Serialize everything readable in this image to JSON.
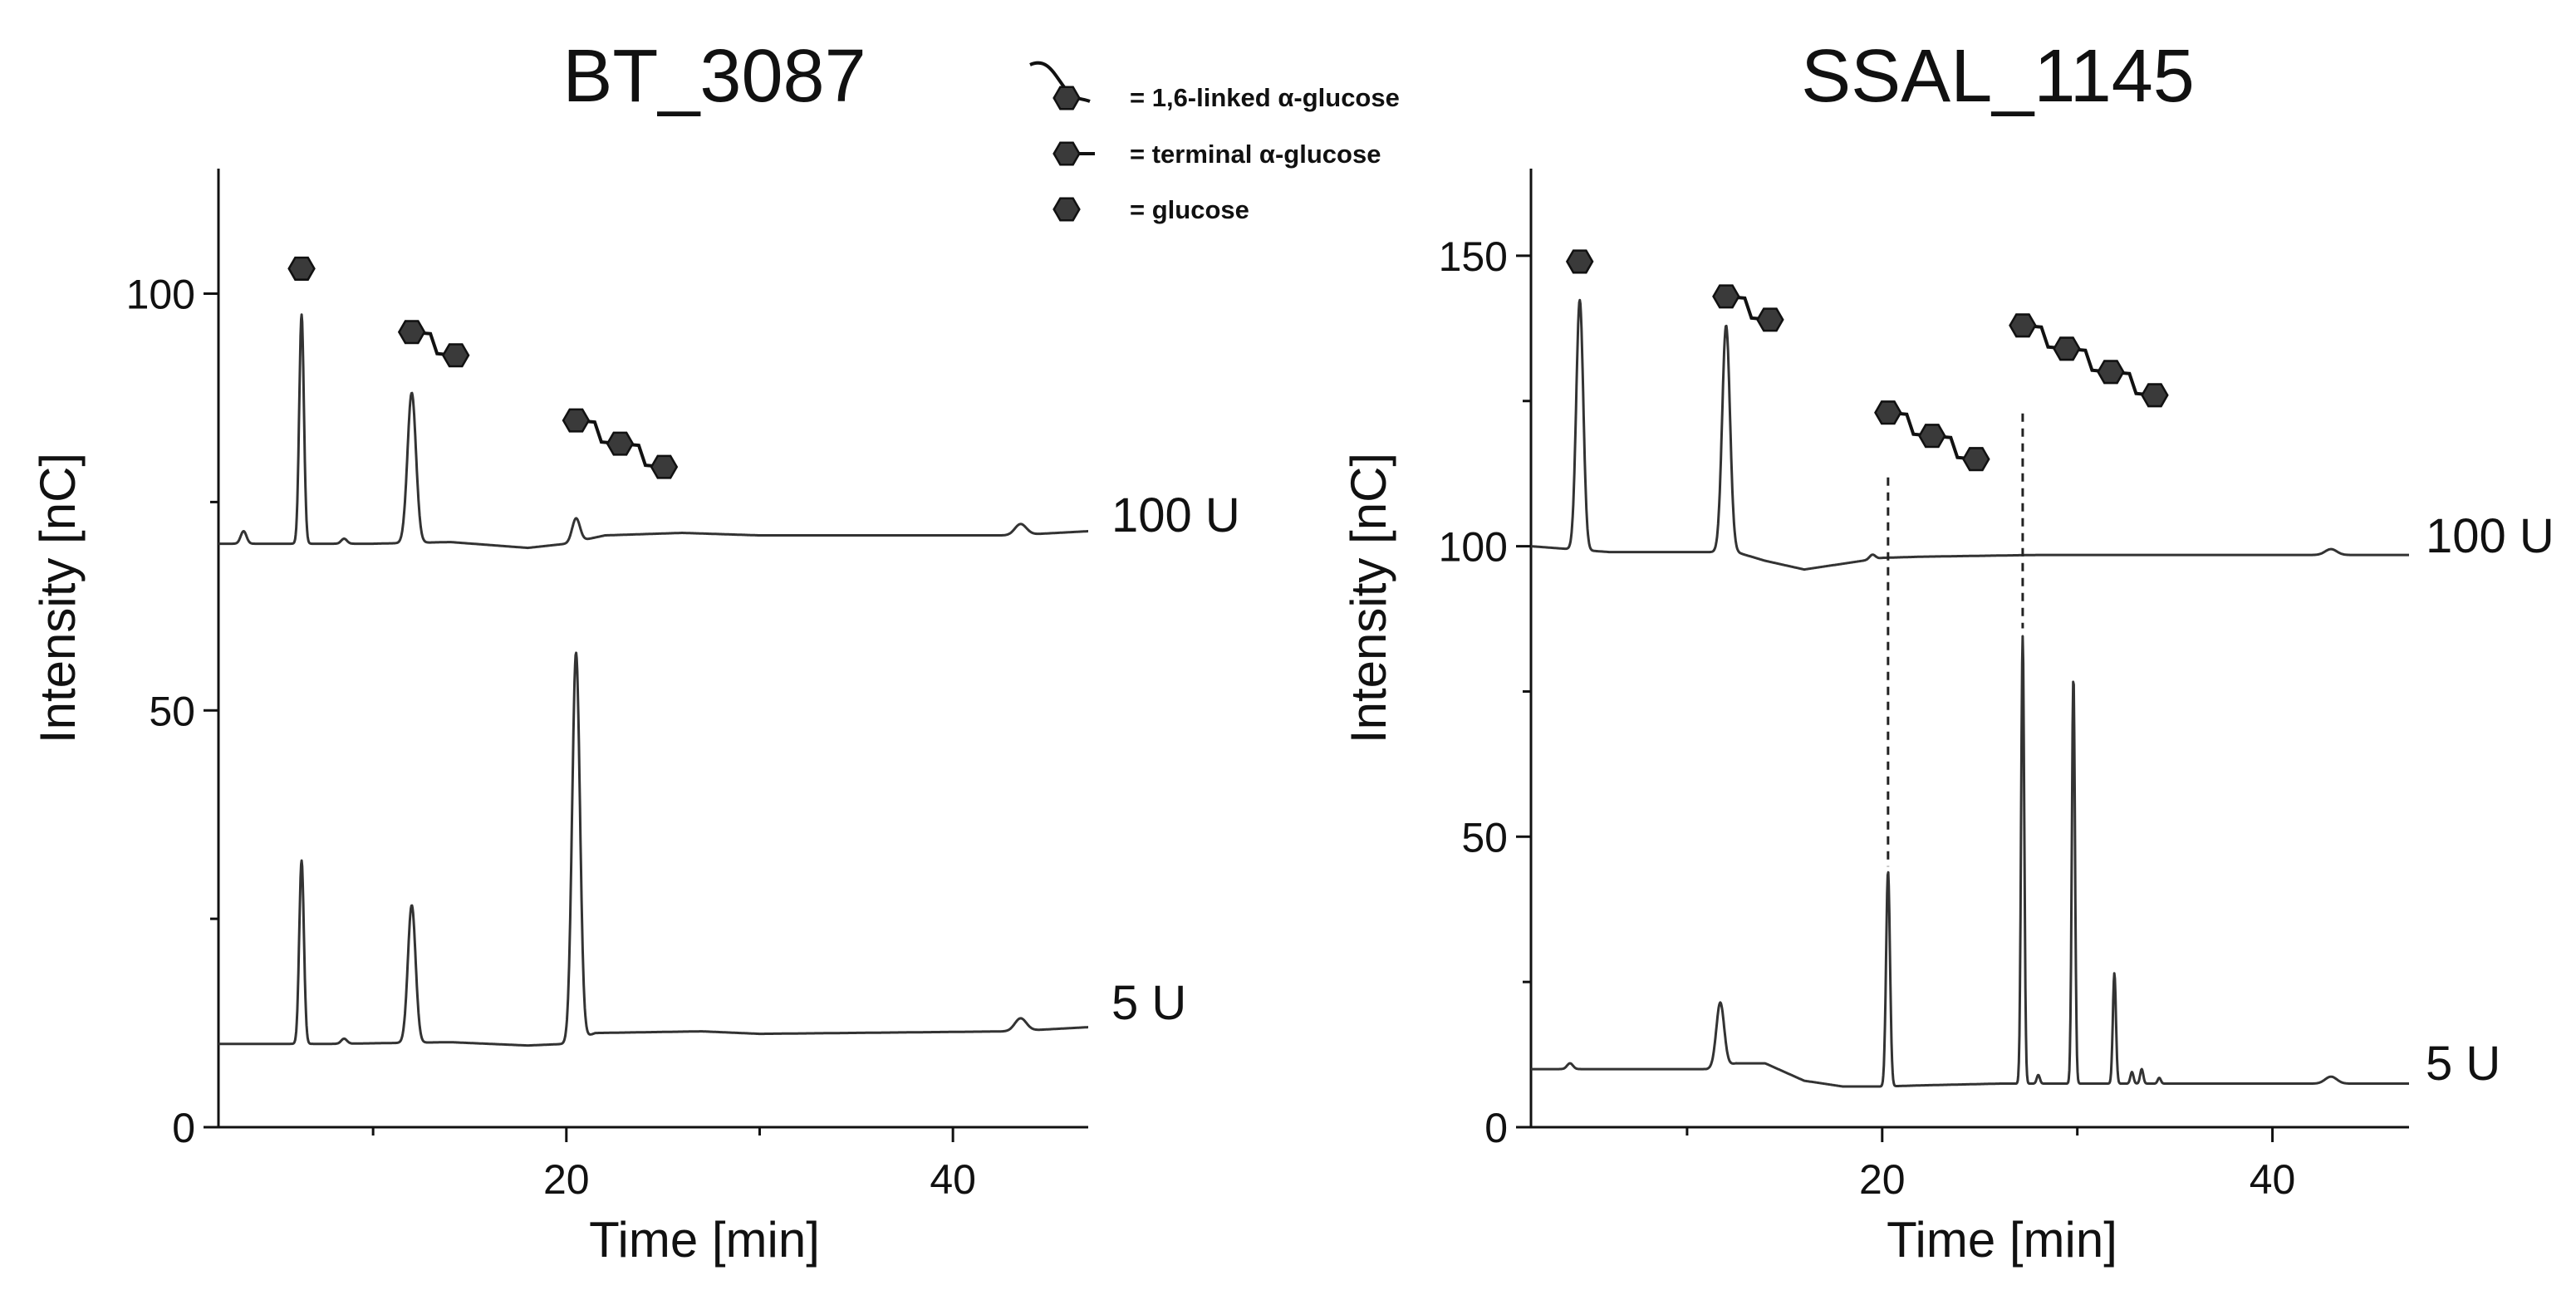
{
  "legend": {
    "items": [
      {
        "symbol": "linked-glucose-icon",
        "label": "= 1,6-linked α-glucose"
      },
      {
        "symbol": "terminal-glucose-icon",
        "label": "= terminal α-glucose"
      },
      {
        "symbol": "glucose-icon",
        "label": "= glucose"
      }
    ]
  },
  "colors": {
    "trace": "#333333",
    "hexagon_fill": "#3a3a3a",
    "axis": "#111111"
  },
  "chart_data": [
    {
      "type": "line",
      "title": "BT_3087",
      "xlabel": "Time [min]",
      "ylabel": "Intensity [nC]",
      "xlim": [
        2,
        47
      ],
      "ylim": [
        0,
        115
      ],
      "xticks": [
        20,
        40
      ],
      "xtick_labels": [
        "20",
        "40"
      ],
      "yticks": [
        0,
        50,
        100
      ],
      "ytick_labels": [
        "0",
        "50",
        "100"
      ],
      "series": [
        {
          "name": "100 U",
          "label": "100 U",
          "baseline": [
            [
              2,
              70
            ],
            [
              10,
              70
            ],
            [
              14,
              70.2
            ],
            [
              18,
              69.5
            ],
            [
              20,
              70
            ],
            [
              22,
              71
            ],
            [
              26,
              71.3
            ],
            [
              30,
              71
            ],
            [
              43,
              71
            ],
            [
              47,
              71.5
            ]
          ],
          "peaks": [
            {
              "t": 3.3,
              "height": 1.5,
              "width": 0.15
            },
            {
              "t": 6.3,
              "height": 27.5,
              "width": 0.12
            },
            {
              "t": 8.5,
              "height": 0.6,
              "width": 0.15
            },
            {
              "t": 12.0,
              "height": 18,
              "width": 0.22
            },
            {
              "t": 20.5,
              "height": 2.8,
              "width": 0.2
            },
            {
              "t": 43.5,
              "height": 1.3,
              "width": 0.3
            }
          ]
        },
        {
          "name": "5 U",
          "label": "5 U",
          "baseline": [
            [
              2,
              10
            ],
            [
              8,
              10
            ],
            [
              14,
              10.2
            ],
            [
              18,
              9.8
            ],
            [
              20,
              10
            ],
            [
              21.5,
              11.3
            ],
            [
              27,
              11.5
            ],
            [
              30,
              11.2
            ],
            [
              43,
              11.5
            ],
            [
              47,
              12
            ]
          ],
          "peaks": [
            {
              "t": 6.3,
              "height": 22,
              "width": 0.12
            },
            {
              "t": 8.5,
              "height": 0.6,
              "width": 0.15
            },
            {
              "t": 12.0,
              "height": 16.5,
              "width": 0.2
            },
            {
              "t": 20.5,
              "height": 46.5,
              "width": 0.2
            },
            {
              "t": 43.5,
              "height": 1.5,
              "width": 0.3
            }
          ]
        }
      ],
      "annotations": [
        {
          "glycan": "glucose",
          "units": 1,
          "t": 6.3,
          "y": 103
        },
        {
          "glycan": "isomaltose",
          "units": 2,
          "t": 12.0,
          "y": 94
        },
        {
          "glycan": "isomaltotriose",
          "units": 3,
          "t": 20.5,
          "y": 82
        }
      ]
    },
    {
      "type": "line",
      "title": "SSAL_1145",
      "xlabel": "Time [min]",
      "ylabel": "Intensity [nC]",
      "xlim": [
        2,
        47
      ],
      "ylim": [
        0,
        165
      ],
      "xticks": [
        20,
        40
      ],
      "xtick_labels": [
        "20",
        "40"
      ],
      "yticks": [
        0,
        50,
        100,
        150
      ],
      "ytick_labels": [
        "0",
        "50",
        "100",
        "150"
      ],
      "series": [
        {
          "name": "100 U",
          "label": "100 U",
          "baseline": [
            [
              2,
              100
            ],
            [
              6,
              99
            ],
            [
              10,
              99
            ],
            [
              12.5,
              99
            ],
            [
              14,
              97.5
            ],
            [
              16,
              96
            ],
            [
              18,
              97
            ],
            [
              20,
              98
            ],
            [
              22,
              98.2
            ],
            [
              28,
              98.5
            ],
            [
              35,
              98.5
            ],
            [
              47,
              98.5
            ]
          ],
          "peaks": [
            {
              "t": 4.5,
              "height": 43,
              "width": 0.18
            },
            {
              "t": 12.0,
              "height": 39,
              "width": 0.2
            },
            {
              "t": 19.5,
              "height": 0.8,
              "width": 0.15
            },
            {
              "t": 43.0,
              "height": 1,
              "width": 0.3
            }
          ]
        },
        {
          "name": "5 U",
          "label": "5 U",
          "baseline": [
            [
              2,
              10
            ],
            [
              11,
              10
            ],
            [
              12.5,
              11
            ],
            [
              14,
              11
            ],
            [
              16,
              8
            ],
            [
              18,
              7
            ],
            [
              20,
              7
            ],
            [
              22,
              7.2
            ],
            [
              26,
              7.5
            ],
            [
              30,
              7.5
            ],
            [
              35,
              7.5
            ],
            [
              42,
              7.5
            ],
            [
              47,
              7.5
            ]
          ],
          "peaks": [
            {
              "t": 4.0,
              "height": 1,
              "width": 0.15
            },
            {
              "t": 11.7,
              "height": 11,
              "width": 0.2
            },
            {
              "t": 20.3,
              "height": 37,
              "width": 0.1
            },
            {
              "t": 27.2,
              "height": 77,
              "width": 0.08
            },
            {
              "t": 28.0,
              "height": 1.5,
              "width": 0.08
            },
            {
              "t": 29.8,
              "height": 70,
              "width": 0.08
            },
            {
              "t": 31.9,
              "height": 19,
              "width": 0.08
            },
            {
              "t": 32.8,
              "height": 2,
              "width": 0.08
            },
            {
              "t": 33.3,
              "height": 2.5,
              "width": 0.08
            },
            {
              "t": 34.2,
              "height": 1,
              "width": 0.08
            },
            {
              "t": 43.0,
              "height": 1.2,
              "width": 0.3
            }
          ]
        }
      ],
      "annotations": [
        {
          "glycan": "glucose",
          "units": 1,
          "t": 4.5,
          "y": 149
        },
        {
          "glycan": "isomaltose",
          "units": 2,
          "t": 12.0,
          "y": 141
        },
        {
          "glycan": "isomaltotriose",
          "units": 3,
          "t": 20.3,
          "y": 119,
          "dashed_to_y": 44
        },
        {
          "glycan": "isomaltotetraose",
          "units": 4,
          "t": 27.2,
          "y": 132,
          "dashed_to_y": 85
        }
      ]
    }
  ]
}
